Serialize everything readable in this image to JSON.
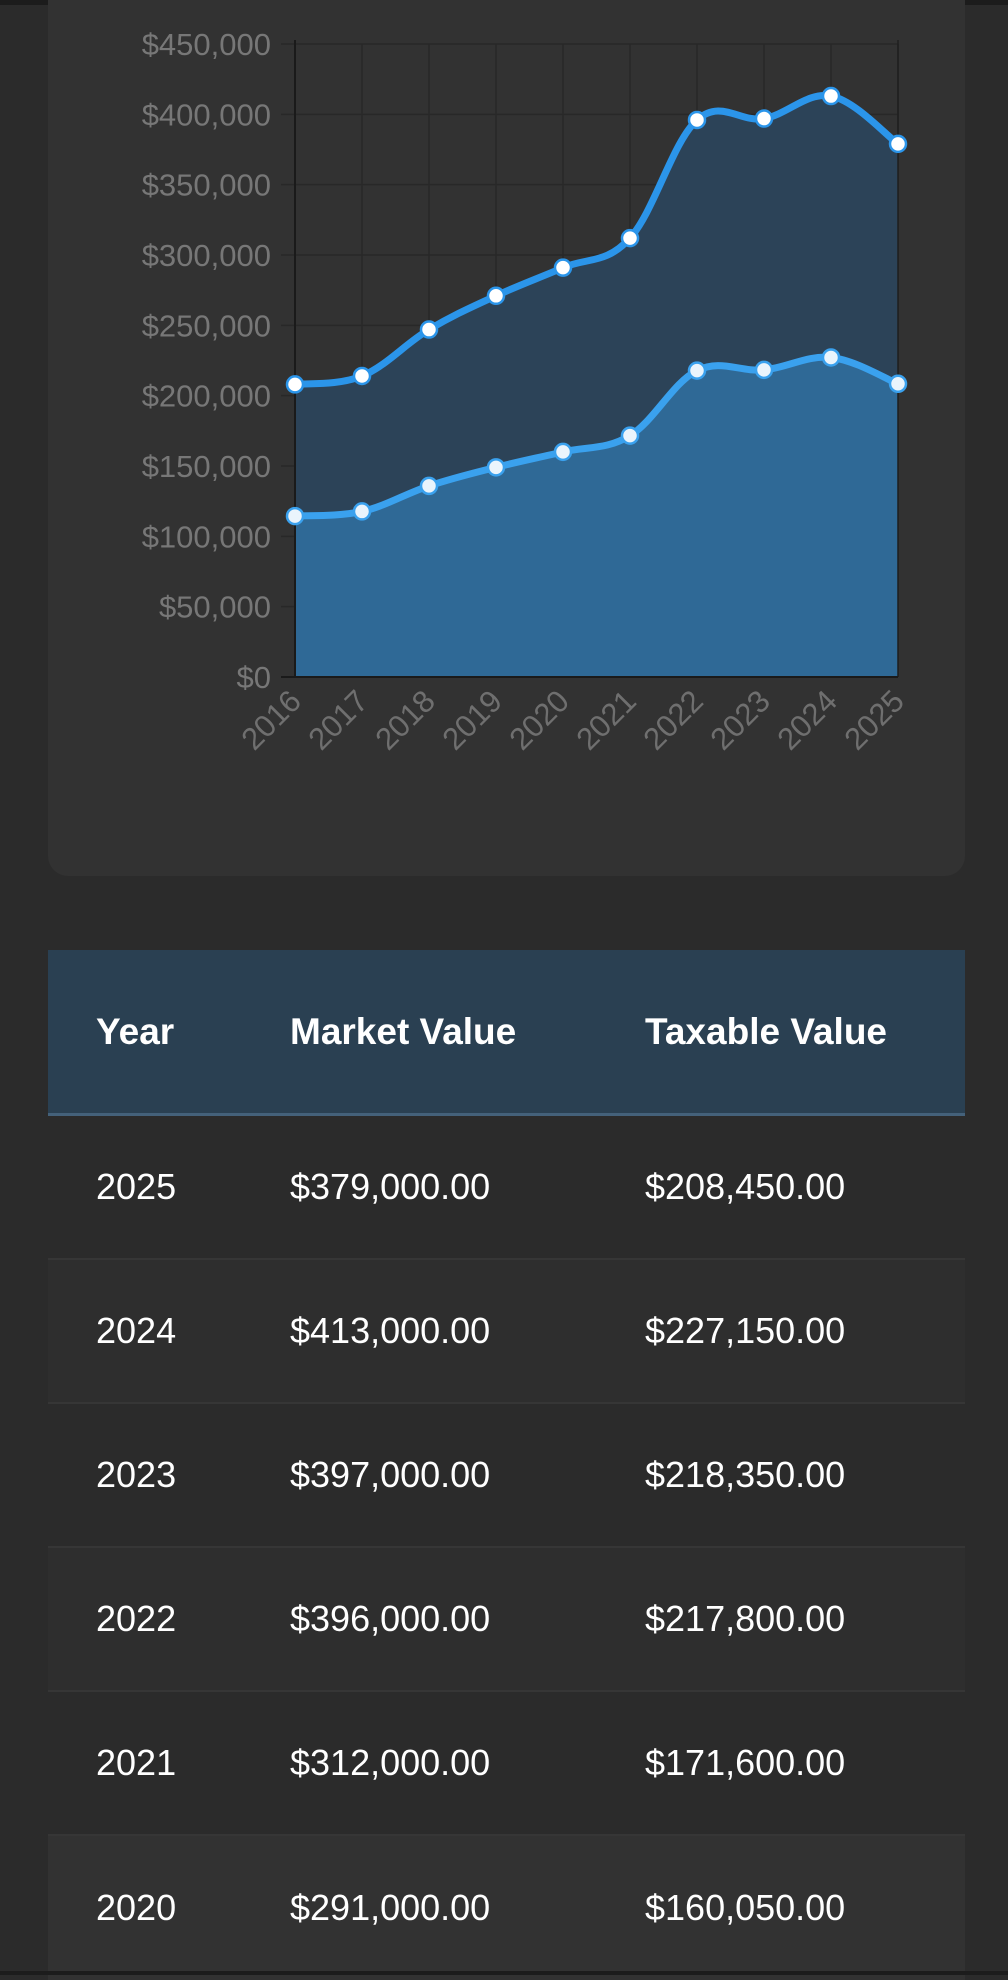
{
  "chart_data": {
    "type": "area",
    "categories": [
      "2016",
      "2017",
      "2018",
      "2019",
      "2020",
      "2021",
      "2022",
      "2023",
      "2024",
      "2025"
    ],
    "series": [
      {
        "values": [
          208000,
          214000,
          247000,
          271000,
          291000,
          312000,
          396000,
          397000,
          413000,
          379000
        ]
      },
      {
        "values": [
          114400,
          117700,
          135850,
          149050,
          160050,
          171600,
          217800,
          218350,
          227150,
          208450
        ]
      }
    ],
    "ylim": [
      0,
      450000
    ],
    "yticks": [
      "$0",
      "$50,000",
      "$100,000",
      "$150,000",
      "$200,000",
      "$250,000",
      "$300,000",
      "$350,000",
      "$400,000",
      "$450,000"
    ],
    "grid": true,
    "colors": {
      "line": "#2b95ea",
      "upper_fill": "#2c4358",
      "lower_fill": "#2f6996",
      "point": "#ffffff"
    }
  },
  "table": {
    "headers": [
      "Year",
      "Market Value",
      "Taxable Value"
    ],
    "rows": [
      [
        "2025",
        "$379,000.00",
        "$208,450.00"
      ],
      [
        "2024",
        "$413,000.00",
        "$227,150.00"
      ],
      [
        "2023",
        "$397,000.00",
        "$218,350.00"
      ],
      [
        "2022",
        "$396,000.00",
        "$217,800.00"
      ],
      [
        "2021",
        "$312,000.00",
        "$171,600.00"
      ],
      [
        "2020",
        "$291,000.00",
        "$160,050.00"
      ]
    ]
  }
}
